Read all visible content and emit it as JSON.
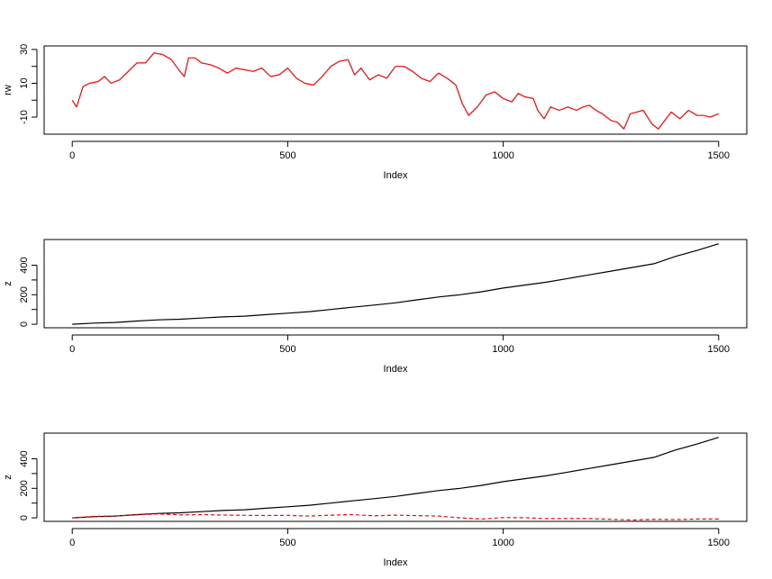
{
  "colors": {
    "axis": "#000000",
    "series_black": "#000000",
    "series_red": "#ff0000"
  },
  "chart_data": [
    {
      "type": "line",
      "xlabel": "Index",
      "ylabel": "rw",
      "xlim": [
        0,
        1500
      ],
      "ylim": [
        -18,
        30
      ],
      "xticks": [
        0,
        500,
        1000,
        1500
      ],
      "yticks": [
        -10,
        10,
        30
      ],
      "grid": false,
      "series": [
        {
          "color": "red",
          "style": "solid",
          "x": [
            0,
            10,
            25,
            40,
            60,
            75,
            90,
            110,
            130,
            150,
            170,
            190,
            210,
            230,
            250,
            260,
            270,
            285,
            300,
            320,
            340,
            360,
            380,
            400,
            420,
            440,
            460,
            480,
            500,
            520,
            540,
            560,
            580,
            600,
            620,
            640,
            655,
            670,
            690,
            710,
            730,
            750,
            770,
            790,
            810,
            830,
            850,
            870,
            890,
            905,
            920,
            940,
            960,
            980,
            1000,
            1020,
            1035,
            1050,
            1070,
            1080,
            1095,
            1110,
            1130,
            1150,
            1170,
            1185,
            1200,
            1215,
            1230,
            1250,
            1265,
            1280,
            1295,
            1310,
            1325,
            1345,
            1360,
            1375,
            1390,
            1410,
            1430,
            1450,
            1465,
            1480,
            1500
          ],
          "y": [
            0,
            -4,
            8,
            10,
            11,
            14,
            10,
            12,
            17,
            22,
            22,
            28,
            27,
            24,
            17,
            14,
            25,
            25,
            22,
            21,
            19,
            16,
            19,
            18,
            17,
            19,
            14,
            15,
            19,
            13,
            10,
            9,
            14,
            20,
            23,
            24,
            15,
            19,
            12,
            15,
            13,
            20,
            20,
            17,
            13,
            11,
            16,
            13,
            9,
            -2,
            -9,
            -4,
            3,
            5,
            1,
            -1,
            4,
            2,
            1,
            -6,
            -11,
            -4,
            -6,
            -4,
            -6,
            -4,
            -3,
            -6,
            -8,
            -12,
            -13,
            -17,
            -8,
            -7,
            -6,
            -14,
            -17,
            -12,
            -7,
            -11,
            -6,
            -9,
            -9,
            -10,
            -8
          ]
        }
      ]
    },
    {
      "type": "line",
      "xlabel": "Index",
      "ylabel": "z",
      "xlim": [
        0,
        1500
      ],
      "ylim": [
        0,
        550
      ],
      "xticks": [
        0,
        500,
        1000,
        1500
      ],
      "yticks": [
        0,
        200,
        400
      ],
      "grid": false,
      "series": [
        {
          "color": "black",
          "style": "solid",
          "x": [
            0,
            50,
            100,
            150,
            200,
            250,
            300,
            350,
            400,
            450,
            500,
            550,
            600,
            650,
            700,
            750,
            800,
            850,
            900,
            950,
            1000,
            1050,
            1100,
            1150,
            1200,
            1250,
            1300,
            1350,
            1400,
            1450,
            1500
          ],
          "y": [
            0,
            8,
            12,
            22,
            30,
            34,
            42,
            50,
            55,
            65,
            75,
            85,
            100,
            115,
            130,
            145,
            165,
            185,
            200,
            220,
            245,
            265,
            285,
            310,
            335,
            360,
            385,
            410,
            460,
            500,
            545
          ]
        }
      ]
    },
    {
      "type": "line",
      "xlabel": "Index",
      "ylabel": "z",
      "xlim": [
        0,
        1500
      ],
      "ylim": [
        0,
        550
      ],
      "xticks": [
        0,
        500,
        1000,
        1500
      ],
      "yticks": [
        0,
        200,
        400
      ],
      "grid": false,
      "series": [
        {
          "color": "black",
          "style": "solid",
          "x": [
            0,
            50,
            100,
            150,
            200,
            250,
            300,
            350,
            400,
            450,
            500,
            550,
            600,
            650,
            700,
            750,
            800,
            850,
            900,
            950,
            1000,
            1050,
            1100,
            1150,
            1200,
            1250,
            1300,
            1350,
            1400,
            1450,
            1500
          ],
          "y": [
            0,
            8,
            12,
            22,
            30,
            34,
            42,
            50,
            55,
            65,
            75,
            85,
            100,
            115,
            130,
            145,
            165,
            185,
            200,
            220,
            245,
            265,
            285,
            310,
            335,
            360,
            385,
            410,
            460,
            500,
            545
          ]
        },
        {
          "color": "red",
          "style": "dashed",
          "x": [
            0,
            50,
            100,
            150,
            200,
            250,
            300,
            350,
            400,
            450,
            500,
            550,
            600,
            650,
            700,
            750,
            800,
            850,
            900,
            950,
            1000,
            1050,
            1100,
            1150,
            1200,
            1250,
            1300,
            1350,
            1400,
            1450,
            1500
          ],
          "y": [
            0,
            10,
            12,
            20,
            27,
            20,
            22,
            19,
            17,
            16,
            17,
            12,
            18,
            22,
            14,
            18,
            15,
            12,
            0,
            -8,
            2,
            1,
            -5,
            -5,
            -5,
            -10,
            -15,
            -10,
            -12,
            -8,
            -8
          ]
        }
      ]
    }
  ]
}
